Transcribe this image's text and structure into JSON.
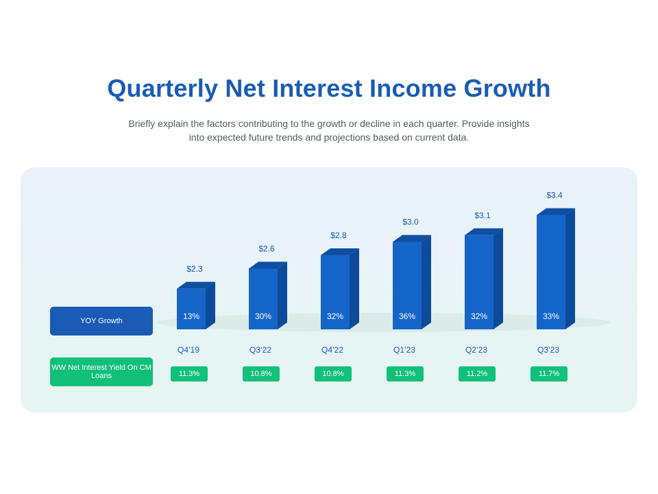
{
  "title": "Quarterly Net Interest Income Growth",
  "subtitle": "Briefly explain the factors contributing to the growth or decline in each quarter. Provide insights into expected future trends and projections based on current data.",
  "row_labels": {
    "yoy_growth": "YOY Growth",
    "net_interest_yield": "WW Net Interest Yield On CM Loans"
  },
  "colors": {
    "title": "#1a5cb5",
    "bar_front": "#1565c8",
    "bar_side": "#0e4a9a",
    "bar_top": "#0f4fa3",
    "yield_badge": "#13c07a",
    "label_text": "#1a5cb5"
  },
  "chart_data": {
    "type": "bar",
    "categories": [
      "Q4’19",
      "Q3’22",
      "Q4’22",
      "Q1’23",
      "Q2’23",
      "Q3’23"
    ],
    "values": [
      2.3,
      2.6,
      2.8,
      3.0,
      3.1,
      3.4
    ],
    "value_labels": [
      "$2.3",
      "$2.6",
      "$2.8",
      "$3.0",
      "$3.1",
      "$3.4"
    ],
    "yoy_growth": [
      "13%",
      "30%",
      "32%",
      "36%",
      "32%",
      "33%"
    ],
    "net_interest_yield": [
      "11.3%",
      "10.8%",
      "10.8%",
      "11.3%",
      "11.2%",
      "11.7%"
    ]
  }
}
